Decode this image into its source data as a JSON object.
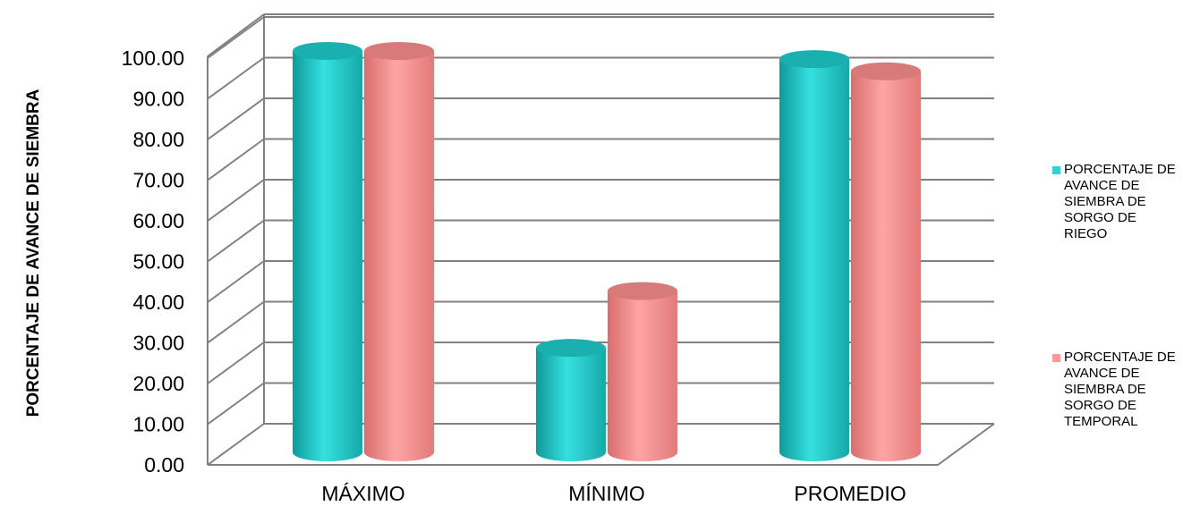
{
  "chart_data": {
    "type": "bar",
    "ylabel": "PORCENTAJE DE AVANCE DE SIEMBRA",
    "ylim": [
      0,
      100
    ],
    "yticks": [
      "0.00",
      "10.00",
      "20.00",
      "30.00",
      "40.00",
      "50.00",
      "60.00",
      "70.00",
      "80.00",
      "90.00",
      "100.00"
    ],
    "categories": [
      "MÁXIMO",
      "MÍNIMO",
      "PROMEDIO"
    ],
    "series": [
      {
        "name": "PORCENTAJE DE AVANCE DE SIEMBRA DE SORGO DE RIEGO",
        "values": [
          100,
          27,
          98
        ],
        "color": "#2ed3d3"
      },
      {
        "name": "PORCENTAJE DE AVANCE DE SIEMBRA DE SORGO DE TEMPORAL",
        "values": [
          100,
          41,
          95
        ],
        "color": "#ff9999"
      }
    ],
    "grid": true,
    "legend": "right",
    "style": "3d-cylinder"
  }
}
